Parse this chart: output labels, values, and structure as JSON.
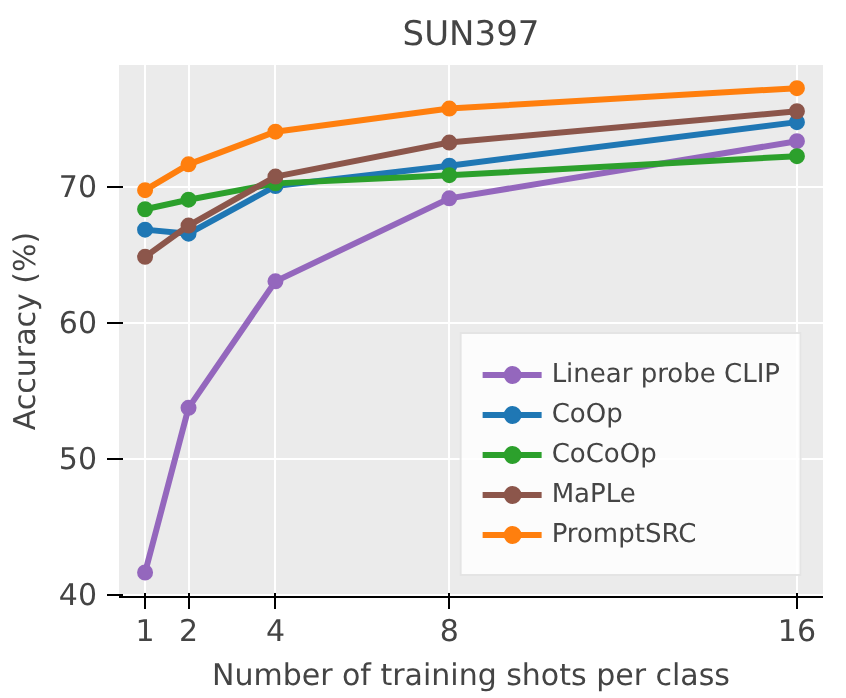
{
  "chart_data": {
    "type": "line",
    "title": "SUN397",
    "xlabel": "Number of training shots per class",
    "ylabel": "Accuracy (%)",
    "x": [
      1,
      2,
      4,
      8,
      16
    ],
    "series": [
      {
        "name": "Linear probe CLIP",
        "color": "#9467bd",
        "values": [
          41.6,
          53.7,
          63.0,
          69.1,
          73.3
        ]
      },
      {
        "name": "CoOp",
        "color": "#1f77b4",
        "values": [
          66.8,
          66.5,
          70.0,
          71.5,
          74.7
        ]
      },
      {
        "name": "CoCoOp",
        "color": "#2ca02c",
        "values": [
          68.3,
          69.0,
          70.2,
          70.8,
          72.2
        ]
      },
      {
        "name": "MaPLe",
        "color": "#8c564b",
        "values": [
          64.8,
          67.1,
          70.7,
          73.2,
          75.5
        ]
      },
      {
        "name": "PromptSRC",
        "color": "#ff7f0e",
        "values": [
          69.7,
          71.6,
          74.0,
          75.7,
          77.2
        ]
      }
    ],
    "xlim": [
      0.4,
      16.6
    ],
    "ylim": [
      39.8,
      78.9
    ],
    "xticks": [
      1,
      2,
      4,
      8,
      16
    ],
    "yticks": [
      40,
      50,
      60,
      70
    ],
    "grid": true,
    "legend": "bottom right",
    "marker": "circle",
    "line_style": "solid"
  }
}
